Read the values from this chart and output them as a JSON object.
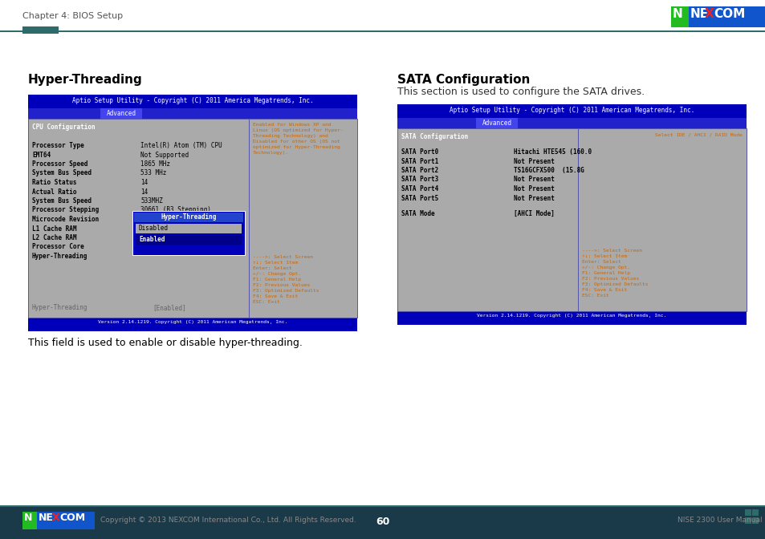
{
  "header_text": "Chapter 4: BIOS Setup",
  "header_line_color": "#2e6b6b",
  "header_rect_color": "#2e6b6b",
  "bg_color": "#ffffff",
  "left_title": "Hyper-Threading",
  "left_screen_title": "Aptio Setup Utility - Copyright (C) 2011 America Megatrends, Inc.",
  "left_tab": "Advanced",
  "left_content_rows": [
    [
      "CPU Configuration",
      ""
    ],
    [
      "",
      ""
    ],
    [
      "Processor Type",
      "Intel(R) Atom (TM) CPU"
    ],
    [
      "EMT64",
      "Not Supported"
    ],
    [
      "Processor Speed",
      "1865 MHz"
    ],
    [
      "System Bus Speed",
      "533 MHz"
    ],
    [
      "Ratio Status",
      "14"
    ],
    [
      "Actual Ratio",
      "14"
    ],
    [
      "System Bus Speed",
      "533MHZ"
    ],
    [
      "Processor Stepping",
      "30661 (B3 Stepping)"
    ],
    [
      "Microcode Revision",
      ""
    ],
    [
      "L1 Cache RAM",
      ""
    ],
    [
      "L2 Cache RAM",
      ""
    ],
    [
      "Processor Core",
      ""
    ],
    [
      "Hyper-Threading",
      ""
    ]
  ],
  "left_bottom_label": "Hyper-Threading",
  "left_bottom_value": "[Enabled]",
  "left_help_text": "Enabled for Windows XP and\nLinux (OS optimized for Hyper-\nThreading Technology) and\nDisabled for other OS (OS not\noptimized for Hyper-Threading\nTechnology).",
  "left_nav_text": "---->: Select Screen\n↑↓: Select Item\nEnter: Select\n+/-: Change Opt.\nF1: General Help\nF2: Previous Values\nF3: Optimized Defaults\nF4: Save & Exit\nESC: Exit",
  "left_version_text": "Version 2.14.1219. Copyright (C) 2011 American Megatrends, Inc.",
  "left_description": "This field is used to enable or disable hyper-threading.",
  "right_title": "SATA Configuration",
  "right_subtitle": "This section is used to configure the SATA drives.",
  "right_screen_title": "Aptio Setup Utility - Copyright (C) 2011 American Megatrends, Inc.",
  "right_tab": "Advanced",
  "right_content_header": "SATA Configuration",
  "right_help_label": "Select IDE / AHCI / RAID Mode",
  "right_sata_ports": [
    [
      "SATA Port0",
      "Hitachi HTE545 (160.0"
    ],
    [
      "SATA Port1",
      "Not Present"
    ],
    [
      "SATA Port2",
      "TS16GCFX500  (15.8G"
    ],
    [
      "SATA Port3",
      "Not Present"
    ],
    [
      "SATA Port4",
      "Not Present"
    ],
    [
      "SATA Port5",
      "Not Present"
    ]
  ],
  "right_sata_mode": [
    "SATA Mode",
    "[AHCI Mode]"
  ],
  "right_nav_text": "---->: Select Screen\n↑↓: Select Item\nEnter: Select\n+/-: Change Opt.\nF1: General Help\nF2: Previous Values\nF3: Optimized Defaults\nF4: Save & Exit\nESC: Exit",
  "right_version_text": "Version 2.14.1219. Copyright (C) 2011 American Megatrends, Inc.",
  "footer_bg_color": "#1a3a4a",
  "footer_copyright": "Copyright © 2013 NEXCOM International Co., Ltd. All Rights Reserved.",
  "footer_page": "60",
  "footer_manual": "NISE 2300 User Manual"
}
